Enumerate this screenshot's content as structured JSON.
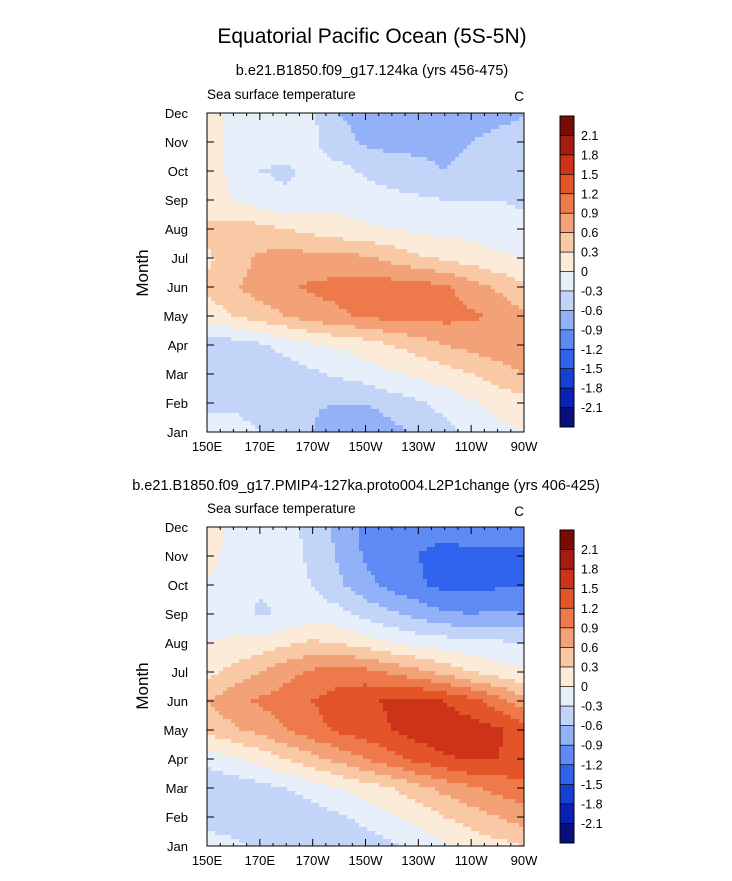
{
  "figure_title": "Equatorial Pacific Ocean (5S-5N)",
  "chart_data": [
    {
      "type": "heatmap",
      "subtitle": "b.e21.B1850.f09_g17.124ka (yrs 456-475)",
      "left_label": "Sea surface temperature",
      "units": "C",
      "ylabel": "Month",
      "xlabel": "",
      "x_ticks": [
        "150E",
        "170E",
        "170W",
        "150W",
        "130W",
        "110W",
        "90W"
      ],
      "x_values": [
        150,
        170,
        190,
        210,
        230,
        250,
        270
      ],
      "y_ticks": [
        "Jan",
        "Feb",
        "Mar",
        "Apr",
        "May",
        "Jun",
        "Jul",
        "Aug",
        "Sep",
        "Oct",
        "Nov",
        "Dec"
      ],
      "colorbar_levels": [
        -2.1,
        -1.8,
        -1.5,
        -1.2,
        -0.9,
        -0.6,
        -0.3,
        0,
        0.3,
        0.6,
        0.9,
        1.2,
        1.5,
        1.8,
        2.1
      ],
      "colorbar_labels": [
        "-2.1",
        "-1.8",
        "-1.5",
        "-1.2",
        "-0.9",
        "-0.6",
        "-0.3",
        "0",
        "0.3",
        "0.6",
        "0.9",
        "1.2",
        "1.5",
        "1.8",
        "2.1"
      ],
      "grid_x_lon": [
        150,
        160,
        170,
        180,
        190,
        200,
        210,
        220,
        230,
        240,
        250,
        260,
        270
      ],
      "grid_y_month": [
        1,
        2,
        3,
        4,
        5,
        6,
        7,
        8,
        9,
        10,
        11,
        12
      ],
      "values": [
        [
          -0.2,
          -0.2,
          -0.3,
          -0.4,
          -0.6,
          -0.9,
          -0.9,
          -0.7,
          -0.55,
          -0.4,
          -0.2,
          -0.1,
          0.0
        ],
        [
          -0.35,
          -0.35,
          -0.4,
          -0.45,
          -0.55,
          -0.6,
          -0.6,
          -0.45,
          -0.35,
          -0.2,
          -0.05,
          0.1,
          0.2
        ],
        [
          -0.55,
          -0.55,
          -0.5,
          -0.45,
          -0.35,
          -0.25,
          -0.15,
          -0.05,
          0.05,
          0.15,
          0.3,
          0.45,
          0.6
        ],
        [
          -0.5,
          -0.45,
          -0.35,
          -0.2,
          -0.05,
          0.05,
          0.15,
          0.3,
          0.45,
          0.6,
          0.7,
          0.8,
          0.85
        ],
        [
          0.15,
          0.3,
          0.45,
          0.6,
          0.75,
          0.85,
          0.95,
          1.0,
          1.0,
          1.0,
          0.95,
          0.85,
          0.65
        ],
        [
          0.35,
          0.55,
          0.75,
          0.85,
          0.95,
          1.0,
          1.05,
          1.05,
          1.05,
          0.95,
          0.75,
          0.55,
          0.35
        ],
        [
          0.25,
          0.45,
          0.65,
          0.75,
          0.7,
          0.7,
          0.65,
          0.5,
          0.35,
          0.25,
          0.15,
          0.05,
          0.0
        ],
        [
          0.4,
          0.45,
          0.4,
          0.3,
          0.2,
          0.1,
          0.05,
          0.0,
          -0.05,
          -0.1,
          -0.1,
          -0.15,
          -0.2
        ],
        [
          0.1,
          0.0,
          -0.15,
          -0.25,
          -0.2,
          -0.1,
          -0.15,
          -0.2,
          -0.25,
          -0.3,
          -0.3,
          -0.3,
          -0.35
        ],
        [
          0.1,
          -0.05,
          -0.3,
          -0.35,
          -0.2,
          -0.2,
          -0.35,
          -0.45,
          -0.55,
          -0.6,
          -0.55,
          -0.45,
          -0.45
        ],
        [
          0.15,
          -0.1,
          -0.15,
          -0.15,
          -0.25,
          -0.5,
          -0.65,
          -0.7,
          -0.65,
          -0.65,
          -0.6,
          -0.55,
          -0.55
        ],
        [
          0.15,
          -0.1,
          -0.15,
          -0.15,
          -0.25,
          -0.6,
          -0.7,
          -0.65,
          -0.6,
          -0.6,
          -0.7,
          -0.65,
          -0.6
        ]
      ]
    },
    {
      "type": "heatmap",
      "subtitle": "b.e21.B1850.f09_g17.PMIP4-127ka.proto004.L2P1change (yrs 406-425)",
      "left_label": "Sea surface temperature",
      "units": "C",
      "ylabel": "Month",
      "xlabel": "",
      "x_ticks": [
        "150E",
        "170E",
        "170W",
        "150W",
        "130W",
        "110W",
        "90W"
      ],
      "x_values": [
        150,
        170,
        190,
        210,
        230,
        250,
        270
      ],
      "y_ticks": [
        "Jan",
        "Feb",
        "Mar",
        "Apr",
        "May",
        "Jun",
        "Jul",
        "Aug",
        "Sep",
        "Oct",
        "Nov",
        "Dec"
      ],
      "colorbar_levels": [
        -2.1,
        -1.8,
        -1.5,
        -1.2,
        -0.9,
        -0.6,
        -0.3,
        0,
        0.3,
        0.6,
        0.9,
        1.2,
        1.5,
        1.8,
        2.1
      ],
      "colorbar_labels": [
        "-2.1",
        "-1.8",
        "-1.5",
        "-1.2",
        "-0.9",
        "-0.6",
        "-0.3",
        "0",
        "0.3",
        "0.6",
        "0.9",
        "1.2",
        "1.5",
        "1.8",
        "2.1"
      ],
      "grid_x_lon": [
        150,
        160,
        170,
        180,
        190,
        200,
        210,
        220,
        230,
        240,
        250,
        260,
        270
      ],
      "grid_y_month": [
        1,
        2,
        3,
        4,
        5,
        6,
        7,
        8,
        9,
        10,
        11,
        12
      ],
      "values": [
        [
          -0.1,
          -0.2,
          -0.4,
          -0.55,
          -0.55,
          -0.55,
          -0.45,
          -0.35,
          -0.2,
          -0.05,
          0.1,
          0.2,
          0.3
        ],
        [
          -0.5,
          -0.55,
          -0.6,
          -0.55,
          -0.45,
          -0.35,
          -0.2,
          -0.05,
          0.1,
          0.3,
          0.45,
          0.6,
          0.75
        ],
        [
          -0.55,
          -0.5,
          -0.4,
          -0.3,
          -0.15,
          0.0,
          0.15,
          0.3,
          0.5,
          0.7,
          0.85,
          1.0,
          1.1
        ],
        [
          -0.2,
          -0.05,
          0.1,
          0.3,
          0.5,
          0.7,
          0.9,
          1.1,
          1.3,
          1.45,
          1.55,
          1.5,
          1.4
        ],
        [
          0.4,
          0.55,
          0.7,
          0.9,
          1.1,
          1.25,
          1.35,
          1.5,
          1.65,
          1.7,
          1.65,
          1.55,
          1.35
        ],
        [
          0.6,
          0.8,
          0.95,
          1.05,
          1.2,
          1.35,
          1.45,
          1.55,
          1.6,
          1.5,
          1.3,
          1.05,
          0.7
        ],
        [
          0.2,
          0.4,
          0.6,
          0.8,
          0.95,
          1.05,
          1.0,
          0.85,
          0.7,
          0.5,
          0.3,
          0.15,
          0.05
        ],
        [
          0.0,
          0.05,
          0.1,
          0.25,
          0.35,
          0.3,
          0.15,
          0.0,
          -0.1,
          -0.15,
          -0.2,
          -0.25,
          -0.3
        ],
        [
          -0.1,
          -0.15,
          -0.35,
          -0.25,
          -0.15,
          -0.2,
          -0.4,
          -0.55,
          -0.7,
          -0.85,
          -0.9,
          -0.85,
          -0.9
        ],
        [
          -0.05,
          -0.15,
          -0.25,
          -0.25,
          -0.3,
          -0.55,
          -0.8,
          -1.0,
          -1.15,
          -1.3,
          -1.3,
          -1.25,
          -1.2
        ],
        [
          0.1,
          -0.1,
          -0.15,
          -0.2,
          -0.35,
          -0.65,
          -0.95,
          -1.1,
          -1.2,
          -1.35,
          -1.3,
          -1.25,
          -1.25
        ],
        [
          0.15,
          -0.1,
          -0.15,
          -0.2,
          -0.4,
          -0.7,
          -0.95,
          -1.1,
          -1.1,
          -1.0,
          -1.0,
          -1.1,
          -1.1
        ]
      ]
    }
  ]
}
